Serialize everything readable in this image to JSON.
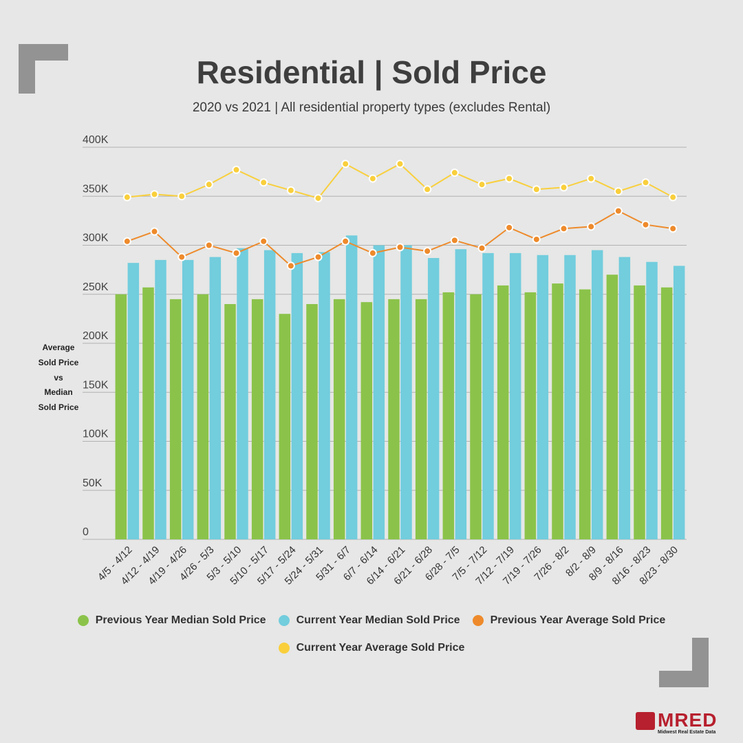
{
  "title": "Residential | Sold Price",
  "subtitle": "2020 vs 2021 | All residential property types (excludes Rental)",
  "y_axis_title": [
    "Average",
    "Sold Price",
    "vs",
    "Median",
    "Sold Price"
  ],
  "legend": [
    {
      "label": "Previous Year Median Sold Price",
      "color": "#8bc34a"
    },
    {
      "label": "Current Year Median Sold Price",
      "color": "#72cddd"
    },
    {
      "label": "Previous Year Average Sold Price",
      "color": "#ee8a2b"
    },
    {
      "label": "Current Year Average Sold Price",
      "color": "#f9cf3c"
    }
  ],
  "logo": {
    "text": "MRED",
    "tagline": "Midwest Real Estate Data"
  },
  "chart_data": {
    "type": "bar",
    "title": "Residential | Sold Price",
    "ylabel": "Average Sold Price vs Median Sold Price",
    "ylim": [
      0,
      400000
    ],
    "yticks": [
      0,
      50000,
      100000,
      150000,
      200000,
      250000,
      300000,
      350000,
      400000
    ],
    "ytick_labels": [
      "0",
      "50K",
      "100K",
      "150K",
      "200K",
      "250K",
      "300K",
      "350K",
      "400K"
    ],
    "categories": [
      "4/5 - 4/12",
      "4/12 - 4/19",
      "4/19 - 4/26",
      "4/26 - 5/3",
      "5/3 - 5/10",
      "5/10 - 5/17",
      "5/17 - 5/24",
      "5/24 - 5/31",
      "5/31 - 6/7",
      "6/7 - 6/14",
      "6/14 - 6/21",
      "6/21 - 6/28",
      "6/28 - 7/5",
      "7/5 - 7/12",
      "7/12 - 7/19",
      "7/19 - 7/26",
      "7/26 - 8/2",
      "8/2 - 8/9",
      "8/9 - 8/16",
      "8/16 - 8/23",
      "8/23 - 8/30"
    ],
    "series": [
      {
        "name": "Previous Year Median Sold Price",
        "kind": "bar",
        "color": "#8bc34a",
        "values": [
          250000,
          257000,
          245000,
          250000,
          240000,
          245000,
          230000,
          240000,
          245000,
          242000,
          245000,
          245000,
          252000,
          250000,
          259000,
          252000,
          261000,
          255000,
          270000,
          259000,
          257000
        ]
      },
      {
        "name": "Current Year Median Sold Price",
        "kind": "bar",
        "color": "#72cddd",
        "values": [
          282000,
          285000,
          285000,
          288000,
          297000,
          295000,
          292000,
          293000,
          310000,
          300000,
          300000,
          287000,
          296000,
          292000,
          292000,
          290000,
          290000,
          295000,
          288000,
          283000,
          279000
        ]
      },
      {
        "name": "Previous Year Average Sold Price",
        "kind": "line",
        "color": "#ee8a2b",
        "values": [
          304000,
          314000,
          288000,
          300000,
          292000,
          304000,
          279000,
          288000,
          304000,
          292000,
          298000,
          294000,
          305000,
          297000,
          318000,
          306000,
          317000,
          319000,
          335000,
          321000,
          317000
        ]
      },
      {
        "name": "Current Year Average Sold Price",
        "kind": "line",
        "color": "#f9cf3c",
        "values": [
          349000,
          352000,
          350000,
          362000,
          377000,
          364000,
          356000,
          348000,
          383000,
          368000,
          383000,
          357000,
          374000,
          362000,
          368000,
          357000,
          359000,
          368000,
          355000,
          364000,
          349000
        ]
      }
    ]
  }
}
